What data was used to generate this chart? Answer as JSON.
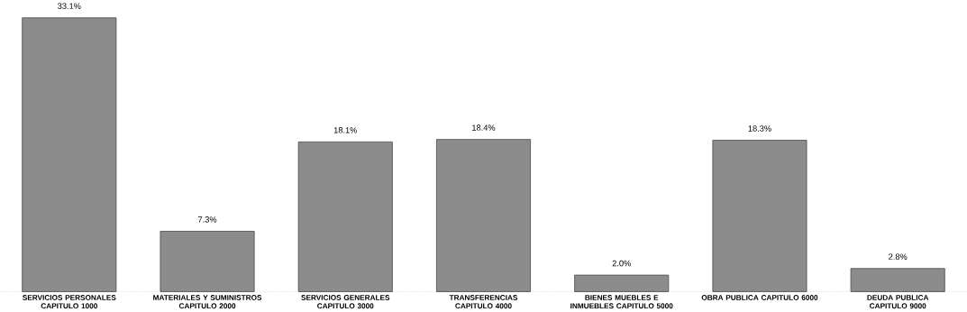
{
  "chart_data": {
    "type": "bar",
    "categories": [
      "SERVICIOS PERSONALES CAPITULO 1000",
      "MATERIALES Y SUMINISTROS CAPITULO 2000",
      "SERVICIOS GENERALES CAPITULO 3000",
      "TRANSFERENCIAS CAPITULO 4000",
      "BIENES MUEBLES E INMUEBLES CAPITULO 5000",
      "OBRA PUBLICA CAPITULO 6000",
      "DEUDA PUBLICA CAPITULO 9000"
    ],
    "values": [
      33.1,
      7.3,
      18.1,
      18.4,
      2.0,
      18.3,
      2.8
    ],
    "value_labels": [
      "33.1%",
      "7.3%",
      "18.1%",
      "18.4%",
      "2.0%",
      "18.3%",
      "2.8%"
    ],
    "color": "#8c8c8c"
  }
}
